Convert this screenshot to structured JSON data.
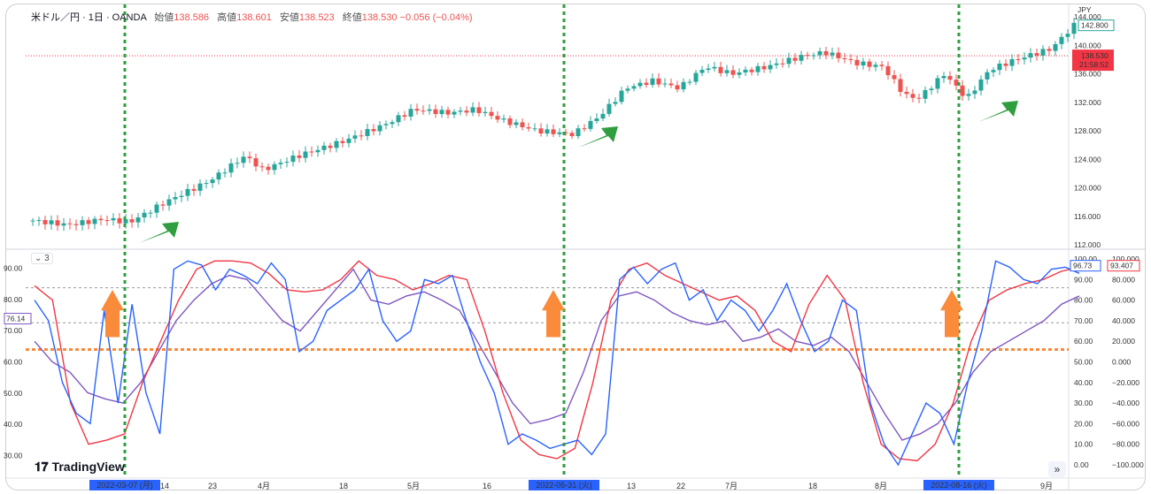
{
  "header": {
    "symbol": "米ドル／円 · 1日 · OANDA",
    "open_label": "始値",
    "open_value": "138.586",
    "high_label": "高値",
    "high_value": "138.601",
    "low_label": "安値",
    "low_value": "138.523",
    "close_label": "終値",
    "close_value": "138.530",
    "change": "−0.056 (−0.04%)"
  },
  "price_axis": {
    "currency": "JPY",
    "ticks": [
      "144.000",
      "140.000",
      "136.000",
      "132.000",
      "128.000",
      "124.000",
      "120.000",
      "116.000",
      "112.000"
    ],
    "high_badge": "142.800",
    "last_price": "138.530",
    "countdown": "21:58:52"
  },
  "indicator": {
    "legend_count": "3",
    "left_ticks": [
      "90.00",
      "80.00",
      "70.00",
      "60.00",
      "50.00",
      "40.00",
      "30.00"
    ],
    "left_badge": "76.14",
    "mid_ticks": [
      "100.00",
      "90.00",
      "80.00",
      "70.00",
      "60.00",
      "50.00",
      "40.00",
      "30.00",
      "20.00",
      "10.00",
      "0.00"
    ],
    "mid_badge": "96.73",
    "right_ticks": [
      "100.000",
      "80.000",
      "60.000",
      "40.000",
      "20.000",
      "0.000",
      "−20.000",
      "−40.000",
      "−60.000",
      "−80.000",
      "−100.000"
    ],
    "right_badge": "93.407"
  },
  "time_axis": {
    "labels": [
      "14",
      "23",
      "4月",
      "18",
      "5月",
      "16",
      "13",
      "22",
      "7月",
      "18",
      "8月",
      "9月"
    ],
    "markers": [
      "2022-03-07 (月)",
      "2022-05-31 (火)",
      "2022-08-16 (火)"
    ]
  },
  "branding": {
    "logo": "TradingView"
  },
  "nav": {
    "scroll_right": "»"
  },
  "colors": {
    "up": "#26a69a",
    "down": "#ef5350",
    "signal_line": "#2e9e3e",
    "arrow_green": "#2e9e3e",
    "arrow_orange": "#f98b3b",
    "line_blue": "#2962ff",
    "line_red": "#f23645",
    "line_purple": "#7e57c2"
  }
}
